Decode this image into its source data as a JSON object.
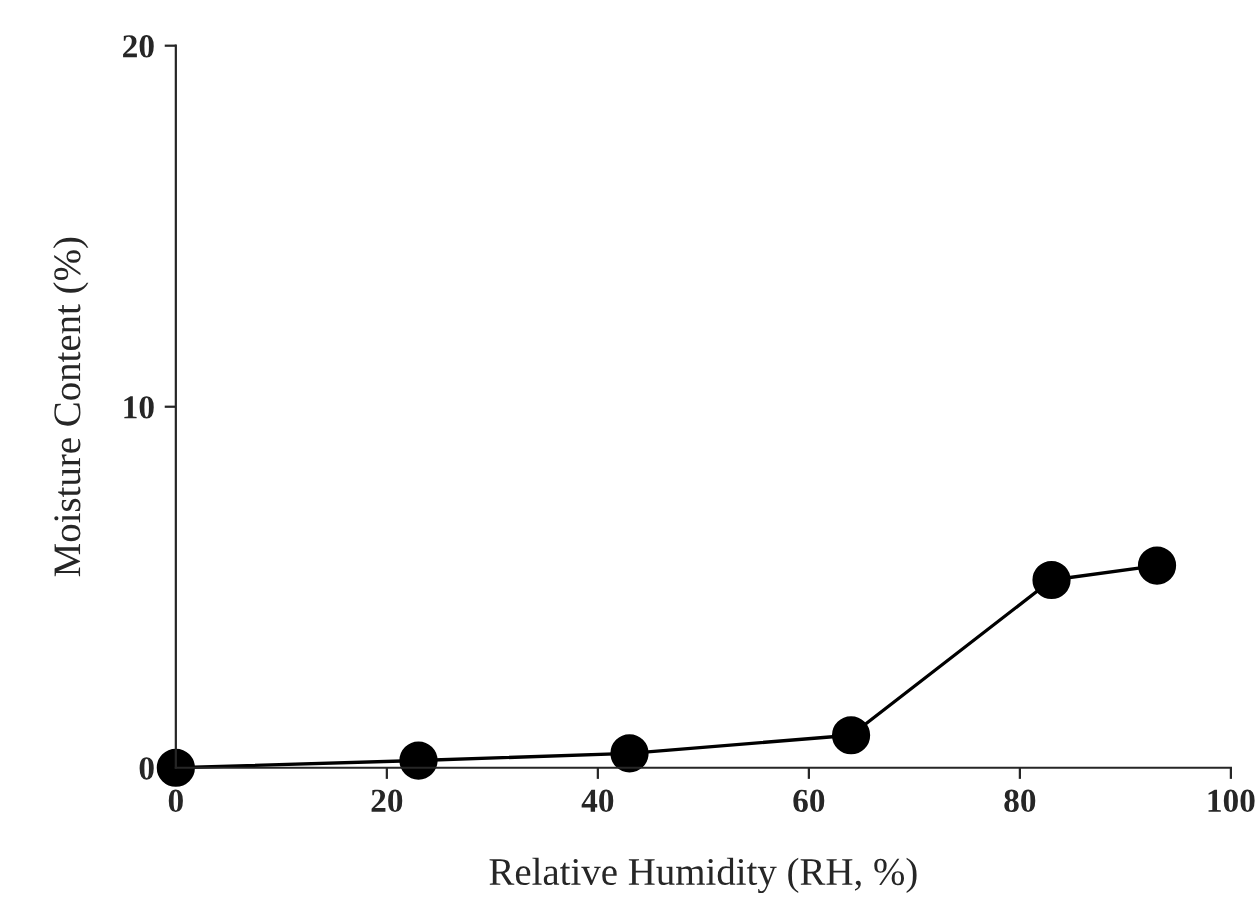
{
  "chart_data": {
    "type": "line",
    "xlabel": "Relative Humidity (RH, %)",
    "ylabel": "Moisture Content (%)",
    "x": [
      0,
      23,
      43,
      64,
      83,
      93
    ],
    "series": [
      {
        "color": "#000000",
        "values": [
          0,
          0.2,
          0.4,
          0.9,
          5.2,
          5.6
        ]
      }
    ],
    "xlim": [
      0,
      100
    ],
    "xticks": [
      0,
      20,
      40,
      60,
      80,
      100
    ],
    "ylim": [
      0,
      20
    ],
    "yticks": [
      0,
      10,
      20
    ],
    "marker": "circle",
    "line_style": "solid",
    "grid": false,
    "legend": false
  }
}
